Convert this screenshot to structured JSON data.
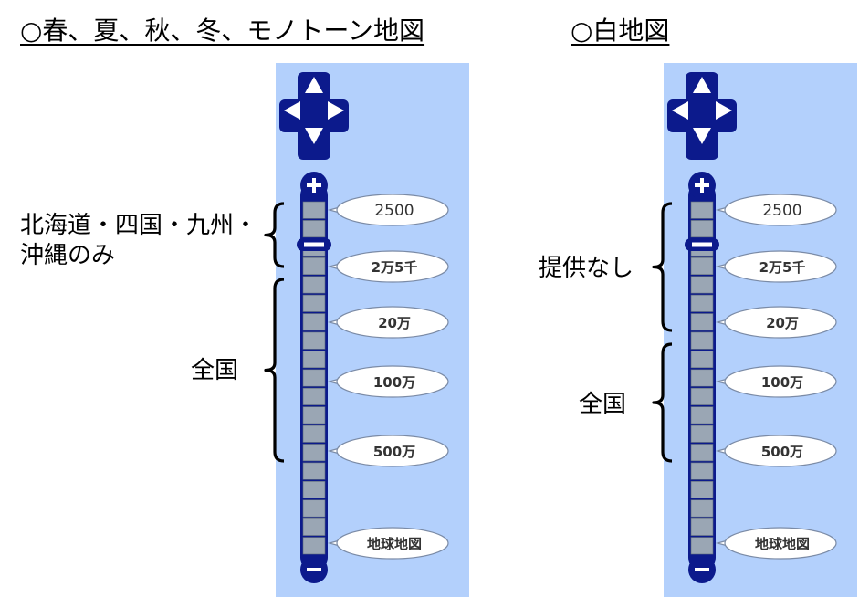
{
  "left_column": {
    "heading": "○春、夏、秋、冬、モノトーン地図",
    "annotations": [
      {
        "lines": [
          "北海道・四国・九州・",
          "沖縄のみ"
        ]
      },
      {
        "lines": [
          "全国"
        ]
      }
    ],
    "scale_labels": [
      "2500",
      "2万5千",
      "20万",
      "100万",
      "500万",
      "地球地図"
    ]
  },
  "right_column": {
    "heading": "○白地図",
    "annotations": [
      {
        "lines": [
          "提供なし"
        ]
      },
      {
        "lines": [
          "全国"
        ]
      }
    ],
    "scale_labels": [
      "2500",
      "2万5千",
      "20万",
      "100万",
      "500万",
      "地球地図"
    ]
  },
  "icons": {
    "pan": "pan-arrows-icon",
    "zoom_in": "zoom-in-icon",
    "zoom_out": "zoom-out-icon",
    "slider_handle": "zoom-slider-handle-icon"
  },
  "colors": {
    "panel": "#b3d0fc",
    "navy": "#0c1a8c",
    "segment": "#9aa6b4",
    "bubble_border": "#7b8ba6"
  }
}
